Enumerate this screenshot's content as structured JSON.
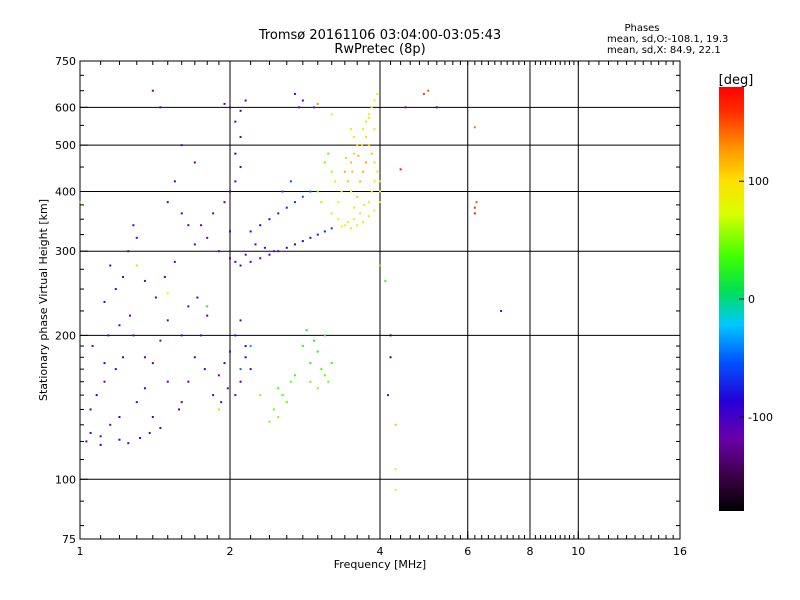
{
  "chart_data": {
    "type": "scatter",
    "title": "Tromsø 20161106 03:04:00-03:05:43",
    "subtitle": "RwPretec (8p)",
    "xlabel": "Frequency [MHz]",
    "ylabel": "Stationary phase Virtual Height [km]",
    "x_scale": "log",
    "y_scale": "log",
    "xlim": [
      1,
      16
    ],
    "ylim": [
      75,
      750
    ],
    "x_ticks": [
      1,
      2,
      4,
      6,
      8,
      10,
      16
    ],
    "x_tick_labels": [
      "1",
      "2",
      "4",
      "6",
      "8",
      "10",
      "16"
    ],
    "y_ticks": [
      75,
      100,
      200,
      300,
      400,
      500,
      600,
      750
    ],
    "y_tick_labels": [
      "75",
      "100",
      "200",
      "300",
      "400",
      "500",
      "600",
      "750"
    ],
    "grid": true,
    "phases_box": {
      "title": "Phases",
      "line1": "mean, sd,O:-108.1, 19.3",
      "line2": "mean, sd,X:  84.9, 22.1"
    },
    "colorbar": {
      "label": "[deg]",
      "ticks": [
        100,
        0,
        -100
      ],
      "tick_labels": [
        "100",
        "0",
        "-100"
      ],
      "range": [
        -180,
        180
      ],
      "colormap": "rainbow (black-purple-blue-cyan-green-yellow-orange-red)"
    },
    "series": [
      {
        "points": [
          [
            1.03,
            120,
            -115
          ],
          [
            1.05,
            125,
            -110
          ],
          [
            1.1,
            118,
            -100
          ],
          [
            1.15,
            130,
            -120
          ],
          [
            1.2,
            121,
            -105
          ],
          [
            1.25,
            119,
            -112
          ],
          [
            1.32,
            122,
            -108
          ],
          [
            1.38,
            125,
            -115
          ],
          [
            1.05,
            140,
            -110
          ],
          [
            1.08,
            150,
            -100
          ],
          [
            1.12,
            160,
            -118
          ],
          [
            1.18,
            170,
            -105
          ],
          [
            1.22,
            180,
            -112
          ],
          [
            1.06,
            190,
            -122
          ],
          [
            1.14,
            200,
            -110
          ],
          [
            1.2,
            210,
            -115
          ],
          [
            1.26,
            220,
            -120
          ],
          [
            1.12,
            235,
            -108
          ],
          [
            1.18,
            250,
            -112
          ],
          [
            1.22,
            265,
            -118
          ],
          [
            1.15,
            280,
            -110
          ],
          [
            1.25,
            300,
            -125
          ],
          [
            1.3,
            320,
            -115
          ],
          [
            1.28,
            340,
            -110
          ],
          [
            1.35,
            155,
            -102
          ],
          [
            1.4,
            175,
            -130
          ],
          [
            1.45,
            195,
            -118
          ],
          [
            1.5,
            215,
            -110
          ],
          [
            1.42,
            240,
            -125
          ],
          [
            1.48,
            265,
            -115
          ],
          [
            1.55,
            285,
            -122
          ],
          [
            1.35,
            260,
            -118
          ],
          [
            1.3,
            145,
            -95
          ],
          [
            1.4,
            135,
            -110
          ],
          [
            1.6,
            145,
            -120
          ],
          [
            1.65,
            160,
            -115
          ],
          [
            1.7,
            180,
            -125
          ],
          [
            1.75,
            200,
            -110
          ],
          [
            1.8,
            220,
            -130
          ],
          [
            1.72,
            240,
            -118
          ],
          [
            1.85,
            150,
            -112
          ],
          [
            1.9,
            165,
            -120
          ],
          [
            1.95,
            175,
            -108
          ],
          [
            2.0,
            185,
            -115
          ],
          [
            1.98,
            155,
            -122
          ],
          [
            1.92,
            145,
            -110
          ],
          [
            2.05,
            150,
            -118
          ],
          [
            2.1,
            160,
            -112
          ],
          [
            2.05,
            200,
            -108
          ],
          [
            2.1,
            215,
            -120
          ],
          [
            2.15,
            190,
            -95
          ],
          [
            2.2,
            170,
            -105
          ],
          [
            2.15,
            180,
            -100
          ],
          [
            1.1,
            123,
            -115
          ],
          [
            1.2,
            135,
            -108
          ],
          [
            1.45,
            128,
            -112
          ],
          [
            1.58,
            140,
            -115
          ],
          [
            1.35,
            180,
            -120
          ],
          [
            1.28,
            200,
            -125
          ],
          [
            1.6,
            200,
            -112
          ],
          [
            1.65,
            230,
            -118
          ],
          [
            1.78,
            170,
            -108
          ],
          [
            1.5,
            160,
            -115
          ],
          [
            1.12,
            175,
            -110
          ]
        ]
      },
      {
        "points": [
          [
            1.9,
            300,
            -115
          ],
          [
            2.0,
            290,
            -120
          ],
          [
            2.05,
            285,
            -112
          ],
          [
            2.1,
            280,
            -118
          ],
          [
            2.2,
            285,
            -110
          ],
          [
            2.3,
            290,
            -115
          ],
          [
            2.4,
            295,
            -108
          ],
          [
            2.5,
            300,
            -112
          ],
          [
            2.6,
            305,
            -110
          ],
          [
            2.7,
            310,
            -102
          ],
          [
            2.8,
            315,
            -100
          ],
          [
            2.9,
            320,
            -95
          ],
          [
            3.0,
            325,
            -90
          ],
          [
            3.1,
            330,
            -85
          ],
          [
            3.2,
            335,
            -80
          ],
          [
            1.7,
            310,
            -118
          ],
          [
            1.8,
            320,
            -122
          ],
          [
            1.75,
            340,
            -125
          ],
          [
            1.85,
            360,
            -120
          ],
          [
            1.95,
            380,
            -115
          ],
          [
            2.0,
            400,
            -110
          ],
          [
            2.05,
            420,
            -118
          ],
          [
            2.1,
            450,
            -112
          ],
          [
            2.05,
            480,
            -108
          ],
          [
            2.1,
            520,
            -115
          ],
          [
            2.05,
            560,
            -118
          ],
          [
            2.1,
            590,
            -112
          ],
          [
            2.15,
            620,
            -110
          ],
          [
            1.95,
            610,
            -120
          ],
          [
            2.0,
            600,
            -115
          ],
          [
            2.2,
            330,
            -105
          ],
          [
            2.3,
            340,
            -100
          ],
          [
            2.4,
            350,
            -95
          ],
          [
            2.5,
            360,
            -90
          ],
          [
            2.6,
            370,
            -85
          ],
          [
            2.7,
            380,
            -80
          ],
          [
            2.8,
            390,
            -70
          ],
          [
            2.9,
            400,
            -60
          ],
          [
            2.55,
            400,
            -75
          ],
          [
            2.65,
            420,
            -70
          ],
          [
            1.4,
            650,
            -118
          ],
          [
            1.45,
            600,
            -112
          ],
          [
            1.6,
            500,
            -115
          ],
          [
            1.7,
            460,
            -120
          ],
          [
            1.55,
            420,
            -110
          ],
          [
            1.5,
            380,
            -118
          ],
          [
            1.6,
            360,
            -115
          ],
          [
            1.65,
            340,
            -125
          ],
          [
            2.7,
            640,
            -115
          ],
          [
            2.8,
            620,
            -110
          ],
          [
            2.75,
            600,
            -118
          ],
          [
            2.25,
            310,
            -112
          ],
          [
            2.35,
            305,
            -115
          ],
          [
            2.45,
            300,
            -118
          ],
          [
            2.15,
            295,
            -120
          ],
          [
            2.0,
            330,
            -112
          ]
        ]
      },
      {
        "points": [
          [
            3.2,
            360,
            65
          ],
          [
            3.3,
            350,
            75
          ],
          [
            3.4,
            340,
            85
          ],
          [
            3.5,
            335,
            90
          ],
          [
            3.6,
            340,
            95
          ],
          [
            3.7,
            345,
            92
          ],
          [
            3.8,
            355,
            90
          ],
          [
            3.9,
            365,
            88
          ],
          [
            4.0,
            380,
            85
          ],
          [
            4.0,
            400,
            90
          ],
          [
            4.0,
            420,
            95
          ],
          [
            3.95,
            440,
            100
          ],
          [
            3.9,
            460,
            105
          ],
          [
            3.85,
            480,
            110
          ],
          [
            3.8,
            500,
            108
          ],
          [
            3.75,
            520,
            102
          ],
          [
            3.7,
            540,
            98
          ],
          [
            3.75,
            560,
            95
          ],
          [
            3.8,
            580,
            92
          ],
          [
            3.85,
            600,
            90
          ],
          [
            3.9,
            620,
            88
          ],
          [
            3.95,
            640,
            85
          ],
          [
            3.5,
            400,
            95
          ],
          [
            3.45,
            420,
            110
          ],
          [
            3.4,
            440,
            120
          ],
          [
            3.5,
            460,
            115
          ],
          [
            3.55,
            480,
            105
          ],
          [
            3.6,
            500,
            100
          ],
          [
            3.55,
            520,
            95
          ],
          [
            3.5,
            540,
            90
          ],
          [
            3.3,
            380,
            80
          ],
          [
            3.35,
            400,
            82
          ],
          [
            3.25,
            420,
            70
          ],
          [
            3.2,
            440,
            60
          ],
          [
            3.1,
            460,
            50
          ],
          [
            3.15,
            480,
            40
          ],
          [
            3.0,
            400,
            55
          ],
          [
            3.05,
            380,
            60
          ],
          [
            3.65,
            420,
            115
          ],
          [
            3.7,
            440,
            120
          ],
          [
            3.75,
            460,
            125
          ],
          [
            3.6,
            390,
            110
          ],
          [
            3.55,
            370,
            100
          ],
          [
            3.65,
            360,
            95
          ],
          [
            3.8,
            380,
            88
          ],
          [
            3.85,
            400,
            92
          ],
          [
            3.9,
            420,
            96
          ],
          [
            3.45,
            345,
            85
          ],
          [
            3.35,
            338,
            80
          ],
          [
            3.55,
            350,
            92
          ],
          [
            3.72,
            375,
            100
          ],
          [
            3.62,
            475,
            118
          ],
          [
            3.68,
            500,
            105
          ],
          [
            3.52,
            440,
            112
          ],
          [
            3.42,
            470,
            108
          ],
          [
            3.9,
            540,
            100
          ]
        ]
      },
      {
        "points": [
          [
            2.5,
            155,
            40
          ],
          [
            2.55,
            150,
            35
          ],
          [
            2.6,
            145,
            45
          ],
          [
            2.45,
            140,
            50
          ],
          [
            2.5,
            135,
            55
          ],
          [
            2.4,
            132,
            48
          ],
          [
            2.65,
            160,
            40
          ],
          [
            2.7,
            165,
            30
          ],
          [
            2.9,
            175,
            25
          ],
          [
            3.0,
            185,
            20
          ],
          [
            2.95,
            195,
            15
          ],
          [
            2.85,
            205,
            10
          ],
          [
            3.05,
            170,
            35
          ],
          [
            3.1,
            165,
            40
          ],
          [
            3.15,
            160,
            45
          ],
          [
            3.2,
            175,
            30
          ],
          [
            3.0,
            155,
            50
          ],
          [
            2.9,
            160,
            45
          ],
          [
            3.1,
            200,
            20
          ],
          [
            2.8,
            190,
            28
          ]
        ]
      },
      {
        "points": [
          [
            1.0,
            380,
            40
          ],
          [
            1.3,
            280,
            60
          ],
          [
            1.5,
            245,
            80
          ],
          [
            1.8,
            230,
            20
          ],
          [
            1.9,
            140,
            60
          ],
          [
            2.2,
            190,
            -40
          ],
          [
            2.3,
            150,
            50
          ],
          [
            2.1,
            170,
            -60
          ],
          [
            4.2,
            200,
            -160
          ],
          [
            4.3,
            105,
            100
          ],
          [
            4.3,
            95,
            80
          ],
          [
            4.2,
            180,
            -140
          ],
          [
            4.4,
            445,
            170
          ],
          [
            4.5,
            600,
            -120
          ],
          [
            4.1,
            260,
            30
          ],
          [
            4.0,
            280,
            40
          ],
          [
            5.0,
            650,
            150
          ],
          [
            4.9,
            640,
            155
          ],
          [
            6.2,
            360,
            170
          ],
          [
            6.2,
            370,
            160
          ],
          [
            6.25,
            380,
            150
          ],
          [
            6.2,
            545,
            140
          ],
          [
            5.2,
            600,
            -130
          ],
          [
            7.0,
            225,
            -115
          ],
          [
            4.3,
            130,
            110
          ],
          [
            4.15,
            150,
            -120
          ],
          [
            3.0,
            610,
            130
          ],
          [
            2.95,
            600,
            -80
          ],
          [
            3.2,
            580,
            90
          ],
          [
            3.8,
            570,
            80
          ]
        ]
      }
    ]
  }
}
